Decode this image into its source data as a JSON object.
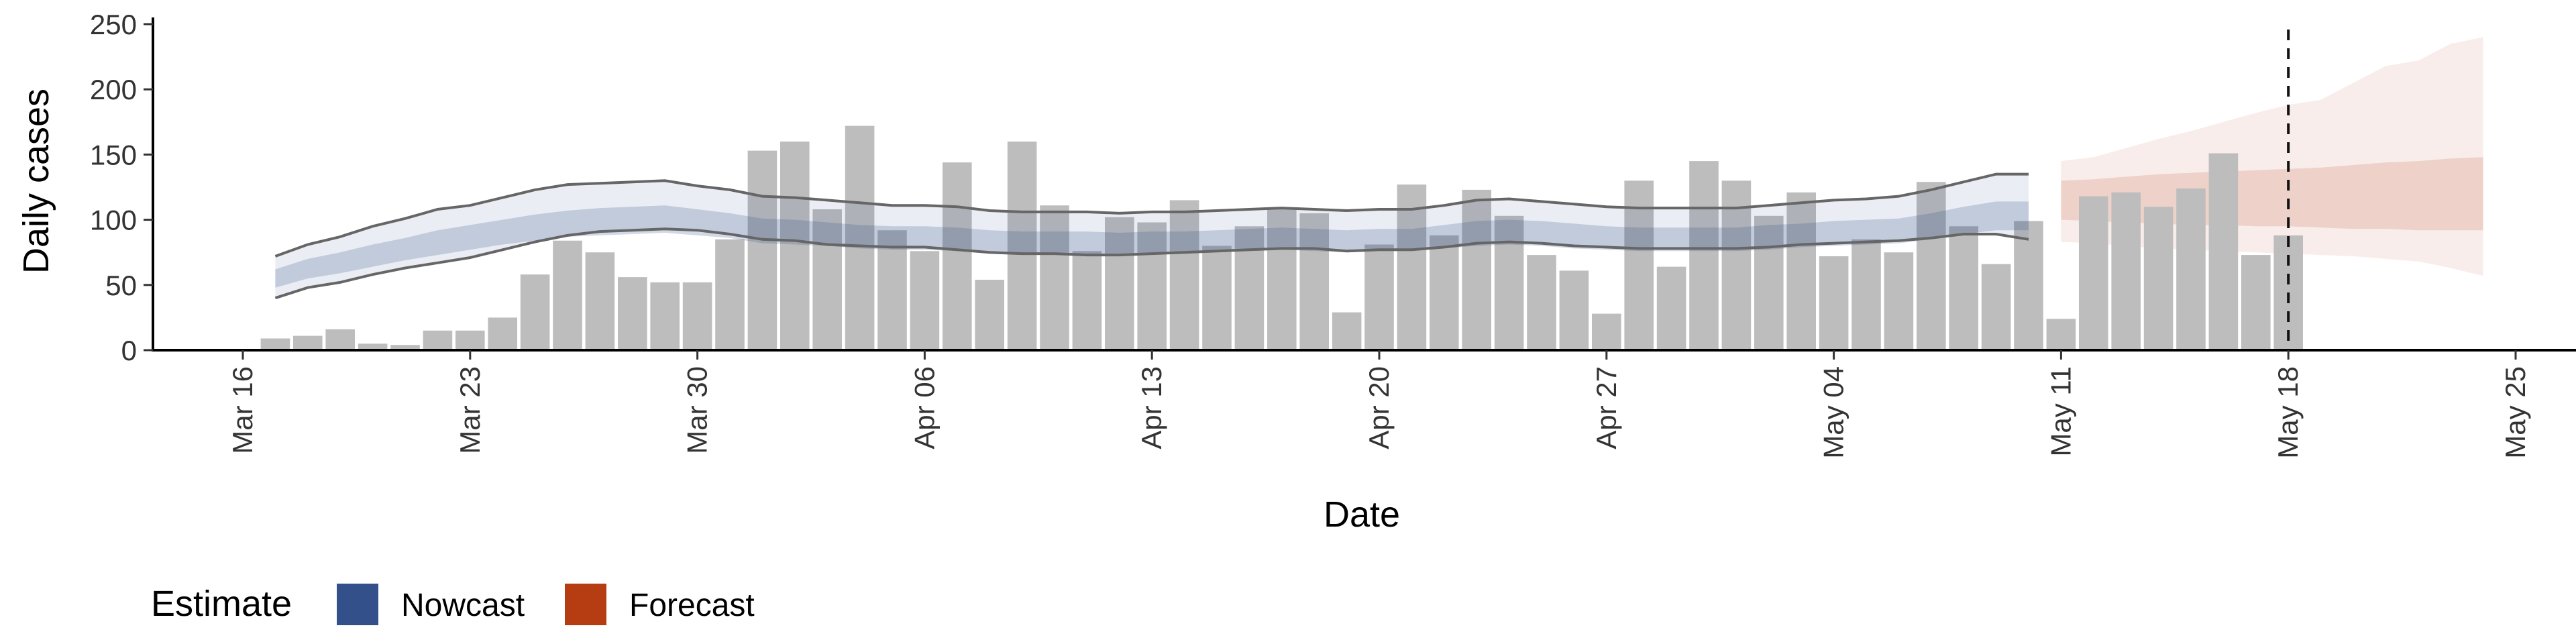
{
  "chart_data": {
    "type": "bar",
    "title": "",
    "xlabel": "Date",
    "ylabel": "Daily cases",
    "ylim": [
      0,
      250
    ],
    "yticks": [
      0,
      50,
      100,
      150,
      200,
      250
    ],
    "xticks": [
      "Mar 16",
      "Mar 23",
      "Mar 30",
      "Apr 06",
      "Apr 13",
      "Apr 20",
      "Apr 27",
      "May 04",
      "May 11",
      "May 18",
      "May 25"
    ],
    "start_date": "2020-03-16",
    "cases": {
      "name": "Daily cases",
      "color": "#bdbdbd",
      "x": [
        "2020-03-17",
        "2020-03-18",
        "2020-03-19",
        "2020-03-20",
        "2020-03-21",
        "2020-03-22",
        "2020-03-23",
        "2020-03-24",
        "2020-03-25",
        "2020-03-26",
        "2020-03-27",
        "2020-03-28",
        "2020-03-29",
        "2020-03-30",
        "2020-03-31",
        "2020-04-01",
        "2020-04-02",
        "2020-04-03",
        "2020-04-04",
        "2020-04-05",
        "2020-04-06",
        "2020-04-07",
        "2020-04-08",
        "2020-04-09",
        "2020-04-10",
        "2020-04-11",
        "2020-04-12",
        "2020-04-13",
        "2020-04-14",
        "2020-04-15",
        "2020-04-16",
        "2020-04-17",
        "2020-04-18",
        "2020-04-19",
        "2020-04-20",
        "2020-04-21",
        "2020-04-22",
        "2020-04-23",
        "2020-04-24",
        "2020-04-25",
        "2020-04-26",
        "2020-04-27",
        "2020-04-28",
        "2020-04-29",
        "2020-04-30",
        "2020-05-01",
        "2020-05-02",
        "2020-05-03",
        "2020-05-04",
        "2020-05-05",
        "2020-05-06",
        "2020-05-07",
        "2020-05-08",
        "2020-05-09",
        "2020-05-10",
        "2020-05-11",
        "2020-05-12",
        "2020-05-13",
        "2020-05-14",
        "2020-05-15",
        "2020-05-16",
        "2020-05-17",
        "2020-05-18"
      ],
      "values": [
        9,
        11,
        16,
        5,
        4,
        15,
        15,
        25,
        58,
        84,
        75,
        56,
        52,
        52,
        85,
        153,
        160,
        108,
        172,
        92,
        76,
        144,
        54,
        160,
        111,
        76,
        102,
        98,
        115,
        80,
        95,
        108,
        105,
        29,
        81,
        127,
        88,
        123,
        103,
        73,
        61,
        28,
        130,
        64,
        145,
        130,
        103,
        121,
        72,
        85,
        75,
        129,
        95,
        66,
        99,
        24,
        118,
        121,
        110,
        124,
        151,
        73,
        88
      ]
    },
    "nowcast": {
      "name": "Nowcast",
      "color": "#33508b",
      "x": [
        "2020-03-17",
        "2020-03-18",
        "2020-03-19",
        "2020-03-20",
        "2020-03-21",
        "2020-03-22",
        "2020-03-23",
        "2020-03-24",
        "2020-03-25",
        "2020-03-26",
        "2020-03-27",
        "2020-03-28",
        "2020-03-29",
        "2020-03-30",
        "2020-03-31",
        "2020-04-01",
        "2020-04-02",
        "2020-04-03",
        "2020-04-04",
        "2020-04-05",
        "2020-04-06",
        "2020-04-07",
        "2020-04-08",
        "2020-04-09",
        "2020-04-10",
        "2020-04-11",
        "2020-04-12",
        "2020-04-13",
        "2020-04-14",
        "2020-04-15",
        "2020-04-16",
        "2020-04-17",
        "2020-04-18",
        "2020-04-19",
        "2020-04-20",
        "2020-04-21",
        "2020-04-22",
        "2020-04-23",
        "2020-04-24",
        "2020-04-25",
        "2020-04-26",
        "2020-04-27",
        "2020-04-28",
        "2020-04-29",
        "2020-04-30",
        "2020-05-01",
        "2020-05-02",
        "2020-05-03",
        "2020-05-04",
        "2020-05-05",
        "2020-05-06",
        "2020-05-07",
        "2020-05-08",
        "2020-05-09",
        "2020-05-10"
      ],
      "upper90": [
        72,
        81,
        87,
        95,
        101,
        108,
        111,
        117,
        123,
        127,
        128,
        129,
        130,
        126,
        123,
        118,
        117,
        115,
        113,
        111,
        111,
        110,
        107,
        106,
        106,
        106,
        105,
        106,
        106,
        107,
        108,
        109,
        108,
        107,
        108,
        108,
        111,
        115,
        116,
        114,
        112,
        110,
        109,
        109,
        109,
        109,
        111,
        113,
        115,
        116,
        118,
        123,
        129,
        135,
        135
      ],
      "upper50": [
        62,
        70,
        75,
        81,
        86,
        92,
        96,
        100,
        104,
        107,
        109,
        110,
        111,
        108,
        105,
        101,
        100,
        98,
        96,
        95,
        95,
        94,
        92,
        91,
        91,
        91,
        90,
        91,
        91,
        92,
        93,
        94,
        93,
        92,
        93,
        93,
        96,
        99,
        100,
        99,
        97,
        95,
        94,
        94,
        94,
        94,
        96,
        97,
        99,
        100,
        101,
        105,
        110,
        114,
        114
      ],
      "lower50": [
        48,
        55,
        59,
        64,
        69,
        73,
        77,
        81,
        84,
        87,
        88,
        89,
        90,
        88,
        86,
        82,
        81,
        80,
        78,
        77,
        77,
        76,
        74,
        73,
        73,
        73,
        73,
        74,
        74,
        75,
        76,
        77,
        76,
        75,
        76,
        76,
        78,
        80,
        81,
        80,
        78,
        77,
        76,
        76,
        76,
        76,
        77,
        79,
        80,
        81,
        82,
        85,
        89,
        92,
        92
      ],
      "lower90": [
        40,
        48,
        52,
        58,
        63,
        67,
        71,
        77,
        83,
        88,
        91,
        92,
        93,
        92,
        89,
        85,
        84,
        81,
        80,
        79,
        79,
        77,
        75,
        74,
        74,
        73,
        73,
        74,
        75,
        76,
        77,
        78,
        78,
        76,
        77,
        77,
        79,
        82,
        83,
        82,
        80,
        79,
        78,
        78,
        78,
        78,
        79,
        81,
        82,
        83,
        84,
        86,
        89,
        89,
        85
      ]
    },
    "forecast": {
      "name": "Forecast",
      "color": "#b63c12",
      "x": [
        "2020-05-11",
        "2020-05-12",
        "2020-05-13",
        "2020-05-14",
        "2020-05-15",
        "2020-05-16",
        "2020-05-17",
        "2020-05-18",
        "2020-05-19",
        "2020-05-20",
        "2020-05-21",
        "2020-05-22",
        "2020-05-23",
        "2020-05-24"
      ],
      "upper90": [
        145,
        148,
        155,
        162,
        168,
        175,
        182,
        188,
        192,
        205,
        218,
        222,
        235,
        240
      ],
      "upper50": [
        130,
        131,
        133,
        135,
        136,
        137,
        138,
        139,
        140,
        142,
        144,
        145,
        147,
        148
      ],
      "lower50": [
        100,
        99,
        98,
        97,
        96,
        96,
        95,
        95,
        94,
        93,
        93,
        92,
        92,
        92
      ],
      "lower90": [
        83,
        82,
        80,
        78,
        77,
        76,
        75,
        74,
        73,
        72,
        70,
        68,
        63,
        57
      ]
    },
    "vline": "2020-05-18",
    "legend": {
      "title": "Estimate",
      "position": "bottom-left",
      "items": [
        {
          "label": "Nowcast",
          "color": "#33508b"
        },
        {
          "label": "Forecast",
          "color": "#b63c12"
        }
      ]
    },
    "grid": false
  }
}
